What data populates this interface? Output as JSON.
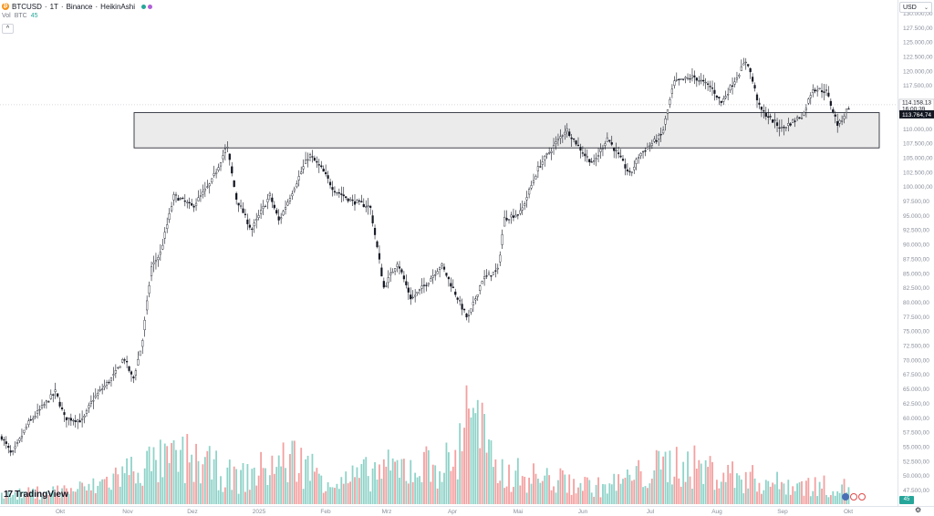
{
  "header": {
    "symbol": "BTCUSD",
    "interval": "1T",
    "exchange": "Binance",
    "chart_style": "HeikinAshi",
    "separator": "·",
    "coin_icon": "bitcoin-icon"
  },
  "volume_indicator": {
    "label": "Vol",
    "unit": "BTC",
    "value": "45"
  },
  "currency_selector": {
    "label": "USD"
  },
  "branding": {
    "logo_text": "TradingView",
    "logo_mark": "17"
  },
  "volume_badge": "45",
  "price_labels": {
    "last_price": "114.158,13",
    "countdown": "16:00:39",
    "crosshair_price": "113.764,74"
  },
  "colors": {
    "up_volume": "#8fd3c9",
    "down_volume": "#f4a0a0",
    "candle": "#131722",
    "zone_fill": "#ebebeb",
    "zone_stroke": "#131722"
  },
  "chart_data": {
    "type": "candlestick",
    "title": "",
    "y_axis": {
      "ticks": [
        "47.500,00",
        "50.000,00",
        "52.500,00",
        "55.000,00",
        "57.500,00",
        "60.000,00",
        "62.500,00",
        "65.000,00",
        "67.500,00",
        "70.000,00",
        "72.500,00",
        "75.000,00",
        "77.500,00",
        "80.000,00",
        "82.500,00",
        "85.000,00",
        "87.500,00",
        "90.000,00",
        "92.500,00",
        "95.000,00",
        "97.500,00",
        "100.000,00",
        "102.500,00",
        "105.000,00",
        "107.500,00",
        "110.000,00",
        "112.500,00",
        "117.500,00",
        "120.000,00",
        "122.500,00",
        "125.000,00",
        "127.500,00",
        "130.000,00"
      ],
      "range": [
        46500,
        131000
      ],
      "position": "right"
    },
    "x_axis": {
      "ticks": [
        "Okt",
        "Nov",
        "Dez",
        "2025",
        "Feb",
        "Mrz",
        "Apr",
        "Mai",
        "Jun",
        "Jul",
        "Aug",
        "Sep",
        "Okt"
      ]
    },
    "price_path": [
      [
        0,
        57000
      ],
      [
        12,
        53500
      ],
      [
        30,
        59000
      ],
      [
        60,
        64500
      ],
      [
        70,
        60000
      ],
      [
        90,
        59500
      ],
      [
        100,
        63000
      ],
      [
        125,
        67500
      ],
      [
        135,
        70500
      ],
      [
        145,
        66500
      ],
      [
        155,
        73000
      ],
      [
        165,
        86000
      ],
      [
        175,
        88500
      ],
      [
        190,
        98500
      ],
      [
        210,
        96500
      ],
      [
        230,
        100500
      ],
      [
        248,
        107000
      ],
      [
        258,
        98000
      ],
      [
        275,
        92500
      ],
      [
        295,
        98500
      ],
      [
        305,
        94000
      ],
      [
        322,
        100000
      ],
      [
        338,
        105500
      ],
      [
        352,
        103000
      ],
      [
        365,
        99500
      ],
      [
        385,
        97500
      ],
      [
        405,
        96500
      ],
      [
        420,
        82500
      ],
      [
        435,
        87000
      ],
      [
        450,
        80500
      ],
      [
        468,
        83500
      ],
      [
        483,
        86500
      ],
      [
        500,
        81000
      ],
      [
        512,
        77000
      ],
      [
        528,
        84000
      ],
      [
        545,
        85500
      ],
      [
        552,
        94500
      ],
      [
        570,
        95500
      ],
      [
        590,
        103500
      ],
      [
        620,
        110000
      ],
      [
        640,
        105500
      ],
      [
        650,
        104000
      ],
      [
        665,
        108500
      ],
      [
        690,
        102000
      ],
      [
        700,
        105500
      ],
      [
        725,
        109000
      ],
      [
        738,
        118000
      ],
      [
        760,
        119000
      ],
      [
        780,
        117000
      ],
      [
        790,
        114500
      ],
      [
        805,
        118500
      ],
      [
        818,
        122000
      ],
      [
        832,
        113500
      ],
      [
        856,
        110000
      ],
      [
        880,
        112500
      ],
      [
        890,
        117000
      ],
      [
        905,
        116500
      ],
      [
        918,
        110500
      ],
      [
        930,
        114000
      ]
    ],
    "volume_path": [
      [
        0,
        2
      ],
      [
        100,
        4
      ],
      [
        150,
        9
      ],
      [
        205,
        11
      ],
      [
        260,
        6
      ],
      [
        320,
        11
      ],
      [
        370,
        5
      ],
      [
        410,
        8
      ],
      [
        500,
        10
      ],
      [
        512,
        28
      ],
      [
        540,
        8
      ],
      [
        600,
        6
      ],
      [
        660,
        4
      ],
      [
        740,
        10
      ],
      [
        800,
        7
      ],
      [
        850,
        5
      ],
      [
        930,
        4
      ]
    ],
    "resistance_zone": {
      "price_top": 112800,
      "price_bottom": 106700
    },
    "current_price": 114158.13,
    "crosshair_price": 113764.74,
    "grid": false,
    "legend": "none"
  }
}
